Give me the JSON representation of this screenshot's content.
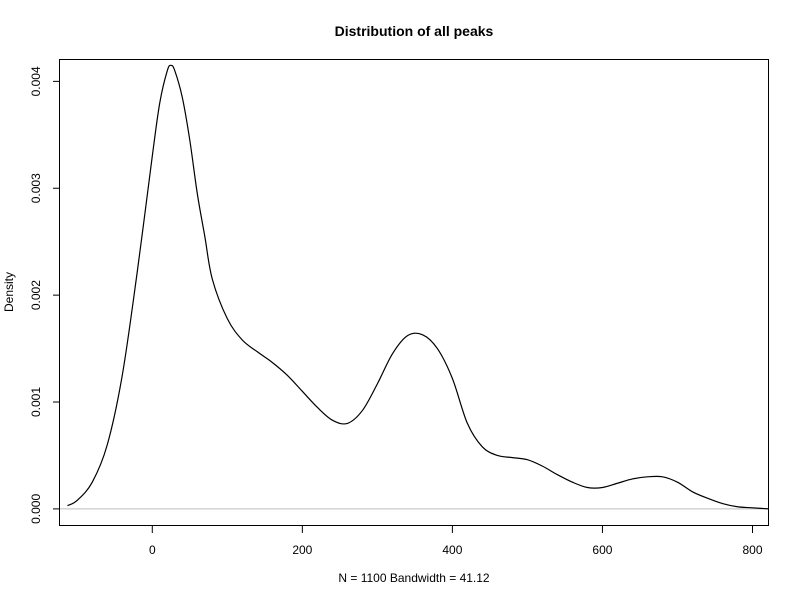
{
  "chart_data": {
    "type": "line",
    "title": "Distribution of all peaks",
    "xlabel": "N = 1100   Bandwidth = 41.12",
    "ylabel": "Density",
    "xlim": [
      -123,
      822
    ],
    "ylim": [
      -0.00016,
      0.0042
    ],
    "xticks": [
      0,
      200,
      400,
      600,
      800
    ],
    "xtick_labels": [
      "0",
      "200",
      "400",
      "600",
      "800"
    ],
    "yticks": [
      0.0,
      0.001,
      0.002,
      0.003,
      0.004
    ],
    "ytick_labels": [
      "0.000",
      "0.001",
      "0.002",
      "0.003",
      "0.004"
    ],
    "grid": false,
    "baseline": 0,
    "series": [
      {
        "x": [
          -113,
          -100,
          -80,
          -60,
          -40,
          -20,
          0,
          10,
          20,
          25,
          30,
          40,
          50,
          60,
          70,
          80,
          100,
          120,
          140,
          160,
          180,
          200,
          220,
          240,
          260,
          280,
          300,
          320,
          340,
          360,
          380,
          400,
          420,
          440,
          460,
          480,
          500,
          520,
          540,
          560,
          580,
          600,
          620,
          640,
          660,
          680,
          700,
          720,
          740,
          760,
          780,
          800,
          822
        ],
        "y": [
          3e-05,
          8e-05,
          0.00025,
          0.0006,
          0.00125,
          0.00222,
          0.0033,
          0.0038,
          0.0041,
          0.00415,
          0.0041,
          0.00385,
          0.00345,
          0.00295,
          0.00255,
          0.00215,
          0.00178,
          0.00158,
          0.00147,
          0.00137,
          0.00125,
          0.0011,
          0.00095,
          0.00083,
          0.0008,
          0.00092,
          0.00117,
          0.00145,
          0.00162,
          0.00163,
          0.0015,
          0.00122,
          0.0008,
          0.00058,
          0.0005,
          0.00048,
          0.00046,
          0.0004,
          0.00032,
          0.00025,
          0.0002,
          0.0002,
          0.00024,
          0.00028,
          0.0003,
          0.0003,
          0.00025,
          0.00016,
          0.0001,
          5e-05,
          2e-05,
          1e-05,
          0.0
        ]
      }
    ]
  }
}
